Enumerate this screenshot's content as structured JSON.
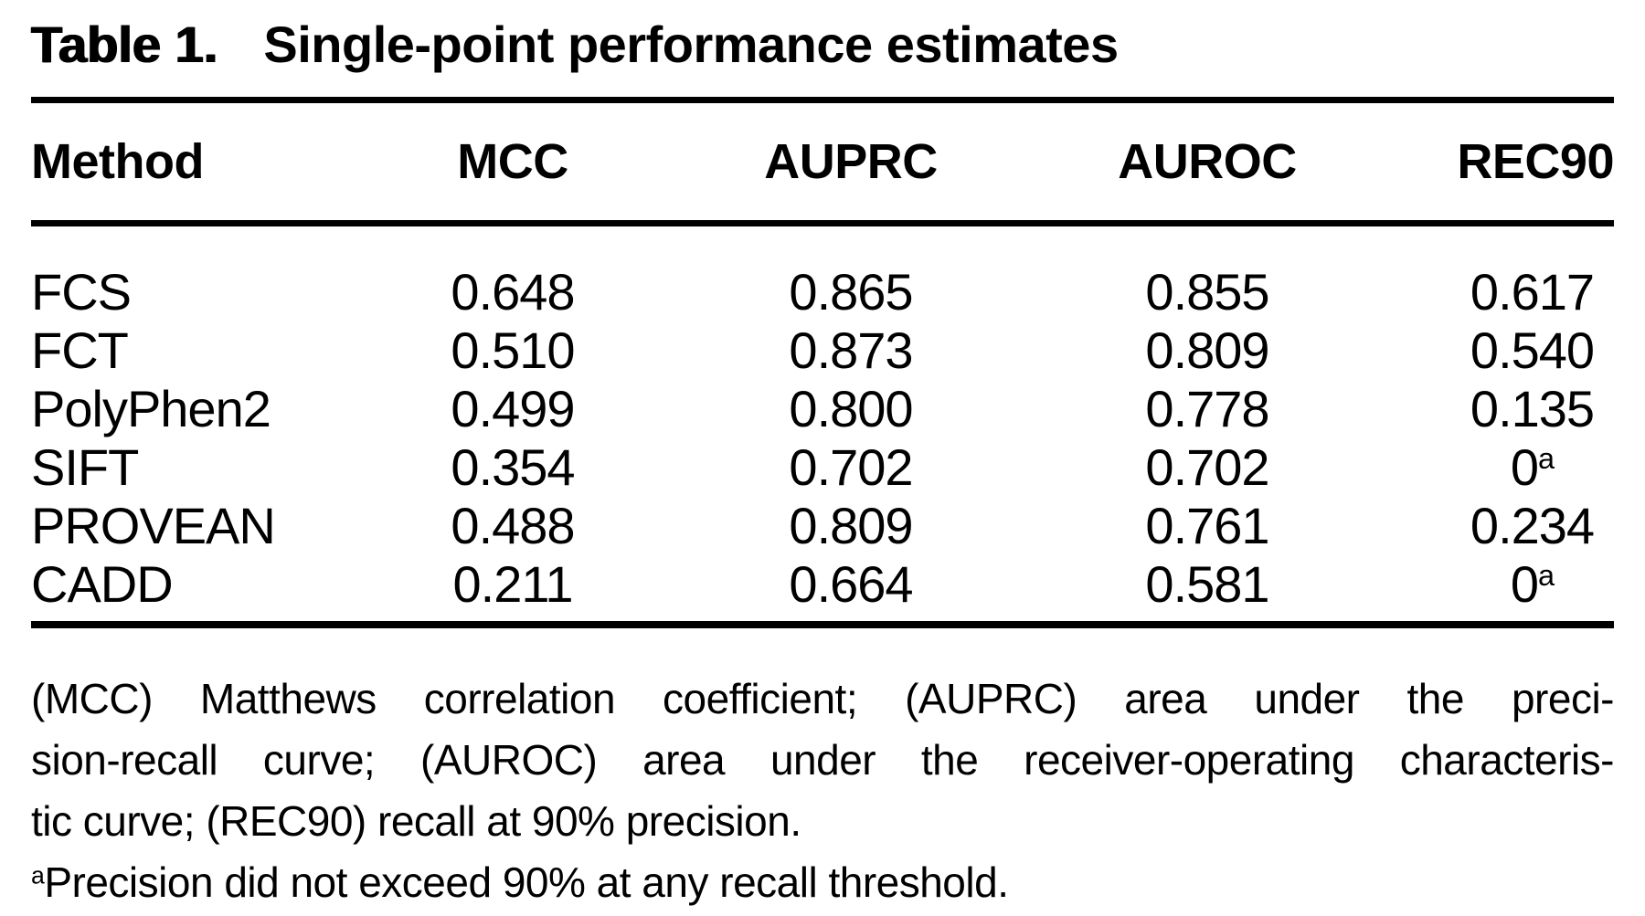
{
  "title": {
    "label": "Table 1.",
    "caption": "Single-point performance estimates"
  },
  "table": {
    "columns": [
      "Method",
      "MCC",
      "AUPRC",
      "AUROC",
      "REC90"
    ],
    "rows": [
      {
        "method": "FCS",
        "mcc": "0.648",
        "auprc": "0.865",
        "auroc": "0.855",
        "rec90": "0.617",
        "rec90_sup": ""
      },
      {
        "method": "FCT",
        "mcc": "0.510",
        "auprc": "0.873",
        "auroc": "0.809",
        "rec90": "0.540",
        "rec90_sup": ""
      },
      {
        "method": "PolyPhen2",
        "mcc": "0.499",
        "auprc": "0.800",
        "auroc": "0.778",
        "rec90": "0.135",
        "rec90_sup": ""
      },
      {
        "method": "SIFT",
        "mcc": "0.354",
        "auprc": "0.702",
        "auroc": "0.702",
        "rec90": "0",
        "rec90_sup": "a"
      },
      {
        "method": "PROVEAN",
        "mcc": "0.488",
        "auprc": "0.809",
        "auroc": "0.761",
        "rec90": "0.234",
        "rec90_sup": ""
      },
      {
        "method": "CADD",
        "mcc": "0.211",
        "auprc": "0.664",
        "auroc": "0.581",
        "rec90": "0",
        "rec90_sup": "a"
      }
    ]
  },
  "footnote": {
    "line1": "(MCC) Matthews correlation coefficient; (AUPRC) area under the preci-",
    "line2": "sion-recall curve; (AUROC) area under the receiver-operating characteris-",
    "line3": "tic curve; (REC90) recall at 90% precision.",
    "note_sup": "a",
    "note_text": "Precision did not exceed 90% at any recall threshold."
  },
  "colors": {
    "text": "#000000",
    "background": "#ffffff"
  }
}
